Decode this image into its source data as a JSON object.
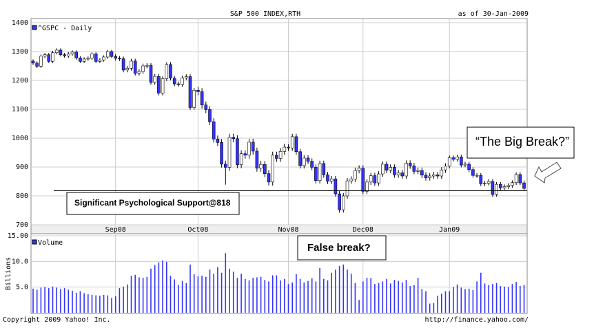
{
  "header": {
    "title": "S&P 500 INDEX,RTH",
    "as_of": "as of 30-Jan-2009"
  },
  "footer": {
    "copyright": "Copyright 2009 Yahoo! Inc.",
    "url": "http://finance.yahoo.com/"
  },
  "annotations": {
    "support_label": "Significant Psychological Support@818",
    "support_value": 818,
    "big_break": "“The Big Break?”",
    "false_break": "False break?"
  },
  "chart_data": [
    {
      "type": "candlestick",
      "legend": "^GSPC - Daily",
      "up_color": "#ffffff",
      "down_color": "#3333ff",
      "categories": [
        null,
        null,
        null,
        null,
        null,
        null,
        null,
        null,
        null,
        null,
        null,
        null,
        null,
        null,
        null,
        null,
        null,
        null,
        null,
        null,
        null,
        "Sep08",
        null,
        null,
        null,
        null,
        null,
        null,
        null,
        null,
        null,
        null,
        null,
        null,
        null,
        null,
        null,
        null,
        null,
        null,
        null,
        null,
        "Oct08",
        null,
        null,
        null,
        null,
        null,
        null,
        null,
        null,
        null,
        null,
        null,
        null,
        null,
        null,
        null,
        null,
        null,
        null,
        null,
        null,
        null,
        null,
        "Nov08",
        null,
        null,
        null,
        null,
        null,
        null,
        null,
        null,
        null,
        null,
        null,
        null,
        null,
        null,
        null,
        null,
        null,
        null,
        "Dec08",
        null,
        null,
        null,
        null,
        null,
        null,
        null,
        null,
        null,
        null,
        null,
        null,
        null,
        null,
        null,
        null,
        null,
        null,
        null,
        null,
        null,
        "Jan09",
        null,
        null,
        null,
        null,
        null,
        null,
        null,
        null,
        null,
        null,
        null,
        null,
        null,
        null,
        null,
        null,
        null,
        null,
        null
      ],
      "open": [
        1267,
        1260,
        1249,
        1284,
        1289,
        1266,
        1296,
        1305,
        1289,
        1285,
        1292,
        1298,
        1278,
        1266,
        1274,
        1277,
        1292,
        1266,
        1271,
        1281,
        1300,
        1283,
        1277,
        1275,
        1236,
        1242,
        1267,
        1225,
        1231,
        1250,
        1252,
        1193,
        1214,
        1156,
        1206,
        1255,
        1208,
        1188,
        1186,
        1209,
        1213,
        1106,
        1166,
        1161,
        1115,
        1099,
        1057,
        997,
        985,
        910,
        899,
        1003,
        998,
        908,
        946,
        941,
        986,
        955,
        896,
        909,
        877,
        848,
        941,
        930,
        954,
        969,
        966,
        1005,
        953,
        905,
        931,
        920,
        899,
        853,
        912,
        873,
        851,
        859,
        807,
        752,
        800,
        852,
        858,
        888,
        896,
        816,
        848,
        870,
        845,
        876,
        910,
        889,
        899,
        873,
        880,
        869,
        913,
        904,
        885,
        888,
        872,
        863,
        869,
        873,
        869,
        890,
        903,
        932,
        927,
        935,
        907,
        910,
        891,
        871,
        871,
        842,
        844,
        850,
        805,
        840,
        828,
        832,
        836,
        846,
        874,
        845
      ],
      "high": [
        1273,
        1266,
        1290,
        1295,
        1295,
        1302,
        1311,
        1311,
        1295,
        1298,
        1304,
        1304,
        1284,
        1280,
        1283,
        1298,
        1298,
        1277,
        1287,
        1306,
        1306,
        1291,
        1285,
        1283,
        1250,
        1275,
        1275,
        1239,
        1258,
        1260,
        1260,
        1222,
        1222,
        1214,
        1263,
        1263,
        1216,
        1196,
        1217,
        1221,
        1221,
        1174,
        1178,
        1173,
        1127,
        1111,
        1069,
        1009,
        997,
        922,
        1015,
        1015,
        1010,
        958,
        958,
        998,
        998,
        967,
        921,
        921,
        889,
        953,
        953,
        966,
        981,
        979,
        1015,
        1015,
        963,
        941,
        941,
        930,
        909,
        922,
        922,
        883,
        869,
        869,
        817,
        810,
        862,
        868,
        898,
        906,
        906,
        858,
        880,
        880,
        886,
        920,
        920,
        909,
        909,
        890,
        890,
        923,
        923,
        914,
        898,
        898,
        882,
        879,
        883,
        883,
        900,
        913,
        940,
        940,
        943,
        943,
        918,
        918,
        899,
        879,
        879,
        852,
        858,
        858,
        848,
        848,
        840,
        844,
        854,
        882,
        882,
        853
      ],
      "low": [
        1254,
        1243,
        1243,
        1278,
        1260,
        1260,
        1290,
        1283,
        1279,
        1279,
        1286,
        1272,
        1260,
        1260,
        1268,
        1271,
        1260,
        1260,
        1265,
        1275,
        1277,
        1269,
        1267,
        1228,
        1228,
        1234,
        1217,
        1217,
        1223,
        1242,
        1185,
        1185,
        1148,
        1148,
        1198,
        1200,
        1180,
        1178,
        1178,
        1201,
        1098,
        1098,
        1149,
        1103,
        1087,
        1045,
        985,
        973,
        898,
        839,
        887,
        986,
        896,
        896,
        929,
        929,
        943,
        884,
        884,
        865,
        836,
        836,
        918,
        918,
        942,
        956,
        956,
        943,
        895,
        895,
        910,
        889,
        843,
        843,
        863,
        841,
        841,
        797,
        742,
        742,
        790,
        842,
        848,
        878,
        806,
        806,
        838,
        835,
        835,
        866,
        879,
        879,
        863,
        863,
        859,
        859,
        894,
        875,
        875,
        862,
        853,
        853,
        859,
        859,
        859,
        880,
        895,
        919,
        919,
        899,
        899,
        883,
        863,
        863,
        834,
        834,
        836,
        797,
        797,
        820,
        820,
        824,
        828,
        838,
        837,
        818
      ],
      "close": [
        1260,
        1249,
        1284,
        1289,
        1266,
        1296,
        1305,
        1289,
        1285,
        1292,
        1298,
        1278,
        1266,
        1274,
        1277,
        1292,
        1266,
        1271,
        1281,
        1300,
        1283,
        1277,
        1275,
        1236,
        1242,
        1267,
        1225,
        1231,
        1250,
        1252,
        1193,
        1214,
        1156,
        1206,
        1255,
        1208,
        1188,
        1186,
        1209,
        1213,
        1106,
        1166,
        1161,
        1115,
        1099,
        1057,
        997,
        985,
        910,
        899,
        1003,
        998,
        908,
        946,
        941,
        986,
        955,
        896,
        909,
        877,
        848,
        941,
        930,
        954,
        969,
        966,
        1005,
        953,
        905,
        931,
        920,
        899,
        853,
        912,
        873,
        851,
        859,
        807,
        752,
        800,
        852,
        858,
        888,
        896,
        816,
        848,
        870,
        845,
        876,
        910,
        889,
        899,
        873,
        880,
        869,
        913,
        904,
        885,
        888,
        872,
        863,
        869,
        873,
        869,
        890,
        903,
        932,
        927,
        935,
        907,
        910,
        891,
        871,
        871,
        842,
        844,
        850,
        805,
        840,
        828,
        832,
        836,
        846,
        874,
        845,
        826
      ],
      "ylim": [
        700,
        1400
      ],
      "yticks": [
        700,
        800,
        900,
        1000,
        1100,
        1200,
        1300,
        1400
      ],
      "grid": true
    },
    {
      "type": "bar",
      "legend": "Volume",
      "y_label": "Billions",
      "color": "#3333ff",
      "values": [
        4.7,
        4.5,
        4.9,
        5.0,
        4.8,
        5.1,
        4.9,
        4.6,
        4.8,
        4.5,
        4.3,
        3.9,
        4.2,
        3.8,
        3.6,
        3.5,
        3.4,
        3.3,
        3.5,
        3.4,
        2.9,
        3.2,
        4.8,
        5.1,
        5.5,
        7.2,
        7.4,
        6.9,
        6.8,
        7.0,
        8.6,
        9.3,
        9.8,
        10.2,
        9.9,
        7.2,
        6.5,
        5.4,
        6.2,
        5.8,
        9.4,
        7.5,
        7.1,
        7.2,
        7.0,
        8.4,
        7.6,
        8.9,
        7.8,
        11.6,
        8.6,
        8.0,
        6.8,
        7.6,
        6.6,
        6.3,
        6.8,
        6.9,
        7.0,
        6.4,
        6.1,
        7.3,
        7.3,
        6.3,
        6.6,
        5.6,
        5.9,
        7.5,
        6.6,
        5.9,
        6.2,
        6.7,
        6.1,
        8.7,
        6.6,
        6.3,
        7.8,
        8.4,
        9.1,
        9.4,
        8.4,
        7.6,
        5.8,
        2.5,
        6.1,
        6.8,
        6.8,
        5.6,
        5.8,
        6.1,
        6.6,
        5.7,
        6.4,
        6.2,
        5.9,
        6.4,
        5.2,
        5.4,
        6.8,
        4.6,
        4.2,
        1.8,
        1.9,
        3.3,
        3.7,
        4.2,
        4.2,
        5.0,
        5.5,
        4.9,
        4.6,
        4.7,
        4.4,
        6.1,
        7.8,
        5.7,
        5.4,
        5.6,
        5.8,
        5.2,
        5.1,
        5.0,
        5.6,
        6.0,
        5.2,
        5.4
      ],
      "ylim": [
        0,
        15
      ],
      "yticks": [
        {
          "value": 5,
          "label": "5.0"
        },
        {
          "value": 10,
          "label": "10.0"
        },
        {
          "value": 15,
          "label": "15.00"
        }
      ],
      "grid": true
    }
  ]
}
